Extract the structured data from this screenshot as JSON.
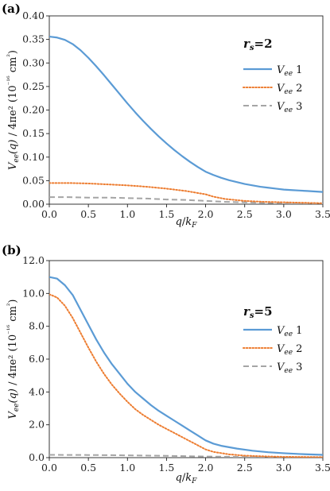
{
  "chart_data": [
    {
      "type": "line",
      "panel_label": "(a)",
      "annotation": "r_s=2",
      "xlabel": "q/k_F",
      "ylabel": "V_ee(q) / 4πe² (10⁻¹⁶ cm²)",
      "xlim": [
        0.0,
        3.5
      ],
      "ylim": [
        0.0,
        0.4
      ],
      "xticks": [
        "0.0",
        "0.5",
        "1.0",
        "1.5",
        "2.0",
        "2.5",
        "3.0",
        "3.5"
      ],
      "yticks": [
        "0.00",
        "0.05",
        "0.10",
        "0.15",
        "0.20",
        "0.25",
        "0.30",
        "0.35",
        "0.40"
      ],
      "grid": false,
      "legend_position": "top-right",
      "series": [
        {
          "name": "V_ee 1",
          "color": "#5B9BD5",
          "style": "solid",
          "x": [
            0.0,
            0.1,
            0.2,
            0.3,
            0.4,
            0.5,
            0.6,
            0.7,
            0.8,
            0.9,
            1.0,
            1.1,
            1.2,
            1.3,
            1.4,
            1.5,
            1.6,
            1.7,
            1.8,
            1.9,
            2.0,
            2.1,
            2.2,
            2.3,
            2.4,
            2.5,
            2.6,
            2.7,
            2.8,
            2.9,
            3.0,
            3.1,
            3.2,
            3.3,
            3.4,
            3.5
          ],
          "y": [
            0.356,
            0.354,
            0.349,
            0.34,
            0.327,
            0.311,
            0.293,
            0.274,
            0.254,
            0.234,
            0.214,
            0.195,
            0.177,
            0.16,
            0.144,
            0.129,
            0.115,
            0.102,
            0.09,
            0.079,
            0.069,
            0.062,
            0.056,
            0.051,
            0.047,
            0.043,
            0.04,
            0.037,
            0.035,
            0.033,
            0.031,
            0.03,
            0.029,
            0.028,
            0.027,
            0.026
          ]
        },
        {
          "name": "V_ee 2",
          "color": "#ED7D31",
          "style": "dotted",
          "x": [
            0.0,
            0.25,
            0.5,
            0.75,
            1.0,
            1.25,
            1.5,
            1.75,
            2.0,
            2.1,
            2.25,
            2.5,
            2.75,
            3.0,
            3.25,
            3.5
          ],
          "y": [
            0.045,
            0.045,
            0.044,
            0.042,
            0.04,
            0.037,
            0.033,
            0.028,
            0.021,
            0.016,
            0.011,
            0.007,
            0.005,
            0.004,
            0.003,
            0.002
          ]
        },
        {
          "name": "V_ee 3",
          "color": "#A5A5A5",
          "style": "dashed",
          "x": [
            0.0,
            0.25,
            0.5,
            0.75,
            1.0,
            1.25,
            1.5,
            1.75,
            2.0,
            2.25,
            2.5,
            2.75,
            3.0,
            3.25,
            3.5
          ],
          "y": [
            0.015,
            0.015,
            0.014,
            0.014,
            0.013,
            0.012,
            0.01,
            0.009,
            0.007,
            0.005,
            0.004,
            0.003,
            0.002,
            0.001,
            0.001
          ]
        }
      ]
    },
    {
      "type": "line",
      "panel_label": "(b)",
      "annotation": "r_s=5",
      "xlabel": "q/k_F",
      "ylabel": "V_ee(q) / 4πe² (10⁻¹⁶ cm²)",
      "xlim": [
        0.0,
        3.5
      ],
      "ylim": [
        0.0,
        12.0
      ],
      "xticks": [
        "0.0",
        "0.5",
        "1.0",
        "1.5",
        "2.0",
        "2.5",
        "3.0",
        "3.5"
      ],
      "yticks": [
        "0.0",
        "2.0",
        "4.0",
        "6.0",
        "8.0",
        "10.0",
        "12.0"
      ],
      "grid": false,
      "legend_position": "right",
      "series": [
        {
          "name": "V_ee 1",
          "color": "#5B9BD5",
          "style": "solid",
          "x": [
            0.0,
            0.1,
            0.2,
            0.3,
            0.4,
            0.5,
            0.6,
            0.7,
            0.8,
            0.9,
            1.0,
            1.1,
            1.2,
            1.3,
            1.4,
            1.5,
            1.6,
            1.7,
            1.8,
            1.9,
            2.0,
            2.1,
            2.2,
            2.4,
            2.6,
            2.8,
            3.0,
            3.2,
            3.5
          ],
          "y": [
            11.0,
            10.9,
            10.5,
            9.9,
            9.0,
            8.1,
            7.2,
            6.4,
            5.7,
            5.1,
            4.5,
            4.0,
            3.6,
            3.2,
            2.85,
            2.55,
            2.25,
            1.95,
            1.65,
            1.35,
            1.05,
            0.85,
            0.72,
            0.55,
            0.42,
            0.33,
            0.27,
            0.22,
            0.17
          ]
        },
        {
          "name": "V_ee 2",
          "color": "#ED7D31",
          "style": "dotted",
          "x": [
            0.0,
            0.1,
            0.2,
            0.3,
            0.4,
            0.5,
            0.6,
            0.7,
            0.8,
            0.9,
            1.0,
            1.1,
            1.2,
            1.3,
            1.4,
            1.5,
            1.6,
            1.7,
            1.8,
            1.9,
            2.0,
            2.1,
            2.3,
            2.5,
            2.8,
            3.0,
            3.5
          ],
          "y": [
            9.95,
            9.75,
            9.25,
            8.5,
            7.6,
            6.7,
            5.85,
            5.1,
            4.45,
            3.9,
            3.4,
            2.95,
            2.6,
            2.3,
            2.0,
            1.75,
            1.5,
            1.25,
            1.0,
            0.75,
            0.5,
            0.35,
            0.2,
            0.12,
            0.07,
            0.05,
            0.03
          ]
        },
        {
          "name": "V_ee 3",
          "color": "#A5A5A5",
          "style": "dashed",
          "x": [
            0.0,
            0.5,
            1.0,
            1.5,
            2.0,
            2.5,
            3.0,
            3.5
          ],
          "y": [
            0.17,
            0.16,
            0.14,
            0.11,
            0.07,
            0.04,
            0.02,
            0.01
          ]
        }
      ]
    }
  ]
}
